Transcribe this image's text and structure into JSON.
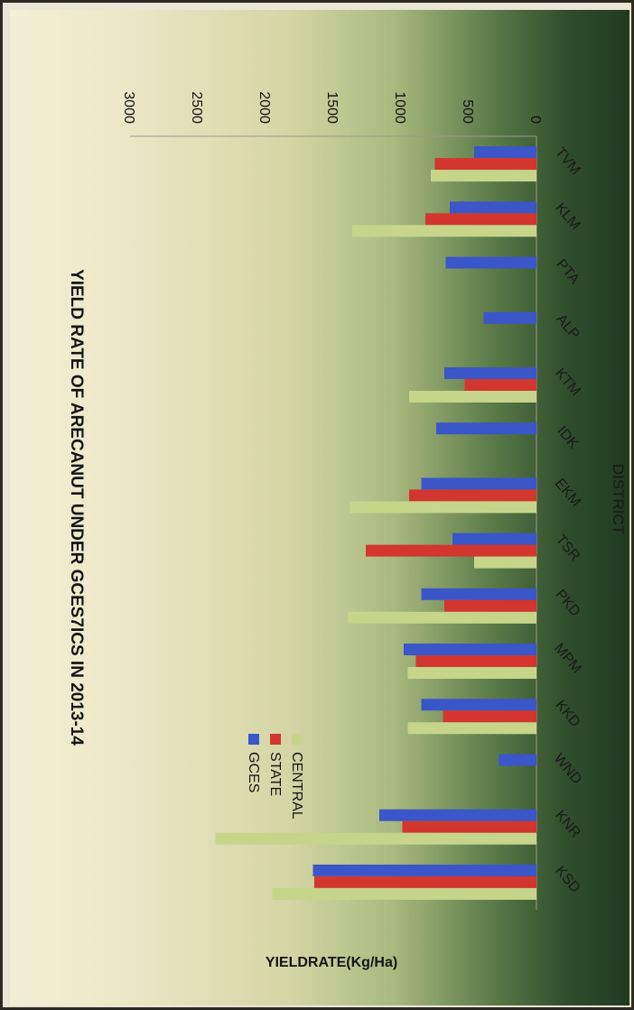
{
  "chart_data": {
    "type": "bar",
    "title": "YIELD RATE OF ARECANUT UNDER GCES7ICS IN 2013-14",
    "xlabel": "DISTRICT",
    "ylabel": "YIELDRATE(Kg/Ha)",
    "ylim": [
      0,
      3000
    ],
    "yticks": [
      0,
      500,
      1000,
      1500,
      2000,
      2500,
      3000
    ],
    "categories": [
      "TVM",
      "KLM",
      "PTA",
      "ALP",
      "KTM",
      "IDK",
      "EKM",
      "TSR",
      "PKD",
      "MPM",
      "KKD",
      "WND",
      "KNR",
      "KSD"
    ],
    "series": [
      {
        "name": "GCES",
        "color": "#3a56c8",
        "values": [
          460,
          640,
          670,
          390,
          680,
          740,
          850,
          620,
          850,
          980,
          850,
          280,
          1160,
          1650
        ]
      },
      {
        "name": "STATE",
        "color": "#d2362f",
        "values": [
          750,
          820,
          0,
          0,
          530,
          0,
          940,
          1260,
          680,
          890,
          690,
          0,
          990,
          1640
        ]
      },
      {
        "name": "CENTRAL",
        "color": "#c7d58a",
        "values": [
          780,
          1360,
          0,
          0,
          940,
          0,
          1380,
          460,
          1390,
          950,
          950,
          0,
          2370,
          1950
        ]
      }
    ],
    "legend_position": "top-right",
    "orientation": "vertical bars, whole chart rotated 90° clockwise",
    "grid": false
  }
}
